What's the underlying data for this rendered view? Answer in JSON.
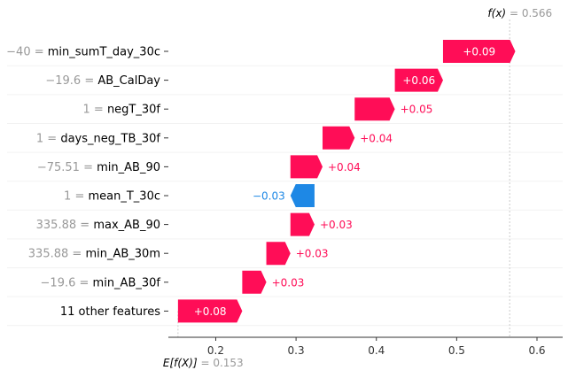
{
  "chart_data": {
    "type": "waterfall",
    "fx_label": "f(x)",
    "fx_value": "0.566",
    "base_label": "E[f(X)]",
    "base_value": "0.153",
    "base": 0.153,
    "final": 0.566,
    "xlim": [
      0.141,
      0.632
    ],
    "xticks": [
      0.2,
      0.3,
      0.4,
      0.5,
      0.6
    ],
    "xtick_labels": [
      "0.2",
      "0.3",
      "0.4",
      "0.5",
      "0.6"
    ],
    "features": [
      {
        "value": "−40",
        "name": "min_sumT_day_30c",
        "contribution": 0.09,
        "label": "+0.09"
      },
      {
        "value": "−19.6",
        "name": "AB_CalDay",
        "contribution": 0.06,
        "label": "+0.06"
      },
      {
        "value": "1",
        "name": "negT_30f",
        "contribution": 0.05,
        "label": "+0.05"
      },
      {
        "value": "1",
        "name": "days_neg_TB_30f",
        "contribution": 0.04,
        "label": "+0.04"
      },
      {
        "value": "−75.51",
        "name": "min_AB_90",
        "contribution": 0.04,
        "label": "+0.04"
      },
      {
        "value": "1",
        "name": "mean_T_30c",
        "contribution": -0.03,
        "label": "−0.03"
      },
      {
        "value": "335.88",
        "name": "max_AB_90",
        "contribution": 0.03,
        "label": "+0.03"
      },
      {
        "value": "335.88",
        "name": "min_AB_30m",
        "contribution": 0.03,
        "label": "+0.03"
      },
      {
        "value": "−19.6",
        "name": "min_AB_30f",
        "contribution": 0.03,
        "label": "+0.03"
      },
      {
        "value": "",
        "name": "11 other features",
        "contribution": 0.08,
        "label": "+0.08"
      }
    ],
    "colors": {
      "positive": "#ff0d57",
      "negative": "#1e88e5",
      "text": "#000000",
      "grey": "#999999",
      "grid": "#cccccc"
    }
  }
}
